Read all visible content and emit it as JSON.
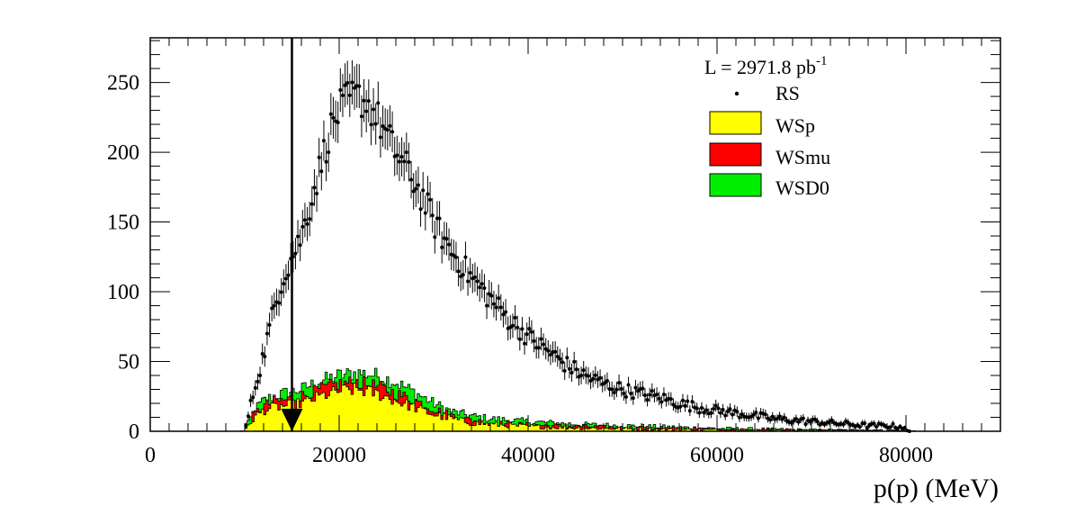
{
  "chart_data": {
    "type": "histogram",
    "xlabel": "p(p) (MeV)",
    "ylabel": "",
    "xlim": [
      0,
      90000
    ],
    "ylim": [
      0,
      282
    ],
    "x_ticks": [
      0,
      20000,
      40000,
      60000,
      80000
    ],
    "x_tick_labels": [
      "0",
      "20000",
      "40000",
      "60000",
      "80000"
    ],
    "y_ticks": [
      0,
      50,
      100,
      150,
      200,
      250
    ],
    "y_tick_labels": [
      "0",
      "50",
      "100",
      "150",
      "200",
      "250"
    ],
    "bin_width": 250,
    "cut_line_x": 15000,
    "luminosity": {
      "text": "L = 2971.8 pb",
      "superscript": "-1"
    },
    "legend": {
      "position": "top-right",
      "entries": [
        "RS",
        "WSp",
        "WSmu",
        "WSD0"
      ]
    },
    "colors": {
      "WSp": "#ffff00",
      "WSmu": "#ff0000",
      "WSD0": "#00ee00",
      "RS": "#000000"
    },
    "series": [
      {
        "name": "RS",
        "style": "points-with-error-bars",
        "curve_x": [
          10000,
          11000,
          12000,
          13000,
          14000,
          15000,
          16000,
          17000,
          18000,
          19000,
          20000,
          21000,
          22000,
          23000,
          24000,
          25000,
          26000,
          27000,
          28000,
          29000,
          30000,
          32000,
          34000,
          36000,
          38000,
          40000,
          42000,
          44000,
          46000,
          48000,
          50000,
          52000,
          54000,
          56000,
          58000,
          60000,
          62000,
          64000,
          66000,
          68000,
          70000,
          72000,
          74000,
          76000,
          78000,
          80000
        ],
        "curve_y": [
          0,
          30,
          55,
          85,
          110,
          125,
          140,
          165,
          190,
          215,
          230,
          238,
          240,
          235,
          225,
          212,
          200,
          190,
          178,
          165,
          150,
          128,
          110,
          95,
          80,
          68,
          58,
          48,
          40,
          34,
          30,
          27,
          24,
          20,
          17,
          15,
          13,
          11,
          9,
          8,
          7,
          6,
          5,
          4,
          4,
          3
        ]
      },
      {
        "name": "WSD0",
        "style": "stacked-fill",
        "curve_x": [
          10000,
          11000,
          12000,
          13000,
          14000,
          16000,
          18000,
          20000,
          22000,
          24000,
          26000,
          28000,
          30000,
          32000,
          34000,
          36000,
          40000,
          45000,
          50000,
          55000,
          60000,
          65000,
          70000,
          75000,
          80000
        ],
        "curve_y": [
          0,
          15,
          22,
          25,
          27,
          30,
          36,
          40,
          42,
          40,
          35,
          28,
          20,
          14,
          11,
          9,
          7,
          5,
          4,
          3,
          2,
          1.5,
          1,
          0.8,
          0.5
        ]
      },
      {
        "name": "WSmu",
        "style": "stacked-fill",
        "curve_x": [
          10000,
          11000,
          12000,
          13000,
          14000,
          16000,
          18000,
          20000,
          22000,
          24000,
          26000,
          28000,
          30000,
          32000,
          34000,
          36000,
          40000,
          45000,
          50000,
          55000,
          60000,
          65000,
          70000,
          75000,
          80000
        ],
        "curve_y": [
          0,
          12,
          18,
          21,
          22,
          25,
          30,
          34,
          35,
          32,
          27,
          22,
          16,
          11,
          8,
          6,
          4.5,
          3.5,
          2.5,
          2,
          1.5,
          1,
          0.8,
          0.5,
          0.3
        ]
      },
      {
        "name": "WSp",
        "style": "stacked-fill",
        "curve_x": [
          10000,
          11000,
          12000,
          13000,
          14000,
          16000,
          18000,
          20000,
          22000,
          24000,
          26000,
          28000,
          30000,
          32000,
          34000,
          36000,
          40000,
          45000,
          50000,
          55000,
          60000,
          65000,
          70000,
          75000,
          80000
        ],
        "curve_y": [
          0,
          10,
          15,
          17,
          18,
          20,
          25,
          29,
          30,
          27,
          22,
          17,
          12,
          9,
          6,
          5,
          3.5,
          2.5,
          1.8,
          1.3,
          1,
          0.7,
          0.5,
          0.3,
          0.2
        ]
      }
    ]
  }
}
